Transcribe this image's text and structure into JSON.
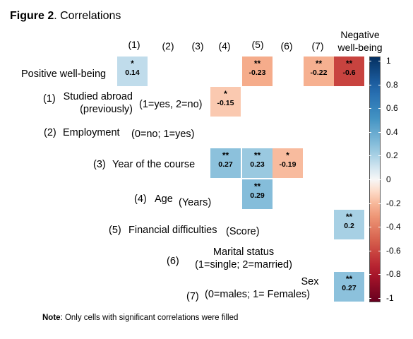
{
  "figure": {
    "title_bold": "Figure 2",
    "title_rest": ". Correlations"
  },
  "note": {
    "bold": "Note",
    "text": ": Only cells with significant correlations were filled"
  },
  "chart_data": {
    "type": "heatmap",
    "columns": [
      "(1)",
      "(2)",
      "(3)",
      "(4)",
      "(5)",
      "(6)",
      "(7)",
      "Negative well-being"
    ],
    "col_neg_line1": "Negative",
    "col_neg_line2": "well-being",
    "rows": [
      {
        "label": "Positive well-being"
      },
      {
        "number": "(1)",
        "label_line1": "Studied abroad",
        "label_line2": "(previously)",
        "coding": "(1=yes, 2=no)"
      },
      {
        "number": "(2)",
        "label": "Employment",
        "coding": "(0=no; 1=yes)"
      },
      {
        "number": "(3)",
        "label": "Year of the course"
      },
      {
        "number": "(4)",
        "label": "Age",
        "coding": "(Years)"
      },
      {
        "number": "(5)",
        "label": "Financial difficulties",
        "coding": "(Score)"
      },
      {
        "number": "(6)",
        "label": "Marital status",
        "coding": "(1=single; 2=married)"
      },
      {
        "number": "(7)",
        "label": "Sex",
        "coding": "(0=males; 1= Females)"
      }
    ],
    "cells": [
      {
        "row": 0,
        "col": 0,
        "value": 0.14,
        "sig": "*",
        "text": "0.14"
      },
      {
        "row": 0,
        "col": 4,
        "value": -0.23,
        "sig": "**",
        "text": "-0.23"
      },
      {
        "row": 0,
        "col": 6,
        "value": -0.22,
        "sig": "**",
        "text": "-0.22"
      },
      {
        "row": 0,
        "col": 7,
        "value": -0.6,
        "sig": "**",
        "text": "-0.6"
      },
      {
        "row": 1,
        "col": 3,
        "value": -0.15,
        "sig": "*",
        "text": "-0.15"
      },
      {
        "row": 3,
        "col": 3,
        "value": 0.27,
        "sig": "**",
        "text": "0.27"
      },
      {
        "row": 3,
        "col": 4,
        "value": 0.23,
        "sig": "**",
        "text": "0.23"
      },
      {
        "row": 3,
        "col": 5,
        "value": -0.19,
        "sig": "*",
        "text": "-0.19"
      },
      {
        "row": 4,
        "col": 4,
        "value": 0.29,
        "sig": "**",
        "text": "0.29"
      },
      {
        "row": 5,
        "col": 7,
        "value": 0.2,
        "sig": "**",
        "text": "0.2"
      },
      {
        "row": 7,
        "col": 7,
        "value": 0.27,
        "sig": "**",
        "text": "0.27"
      }
    ],
    "colorbar": {
      "min": -1,
      "max": 1,
      "ticks": [
        1,
        0.8,
        0.6,
        0.4,
        0.2,
        0,
        -0.2,
        -0.4,
        -0.6,
        -0.8,
        -1
      ],
      "tick_labels": [
        "1",
        "0.8",
        "0.6",
        "0.4",
        "0.2",
        "0",
        "-0.2",
        "-0.4",
        "-0.6",
        "-0.8",
        "-1"
      ]
    },
    "colors": {
      "negative": "#67001f",
      "zero": "#f7f7f7",
      "positive": "#053061"
    }
  }
}
